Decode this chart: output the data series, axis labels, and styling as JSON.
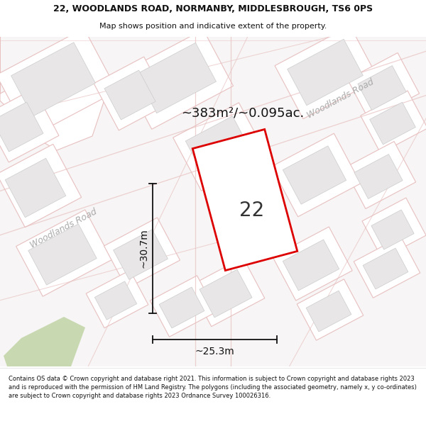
{
  "title_line1": "22, WOODLANDS ROAD, NORMANBY, MIDDLESBROUGH, TS6 0PS",
  "title_line2": "Map shows position and indicative extent of the property.",
  "area_label": "~383m²/~0.095ac.",
  "property_number": "22",
  "dim_width": "~25.3m",
  "dim_height": "~30.7m",
  "road_label_left": "Woodlands Road",
  "road_label_right": "Woodlands Road",
  "footer_text": "Contains OS data © Crown copyright and database right 2021. This information is subject to Crown copyright and database rights 2023 and is reproduced with the permission of HM Land Registry. The polygons (including the associated geometry, namely x, y co-ordinates) are subject to Crown copyright and database rights 2023 Ordnance Survey 100026316.",
  "map_bg": "#f7f5f5",
  "parcel_fill": "#ffffff",
  "parcel_edge": "#e8c0c0",
  "building_fill": "#e8e6e6",
  "building_stroke": "#cccccc",
  "plot_fill": "#ffffff",
  "plot_stroke": "#dd0000",
  "green_fill": "#c8d8b0",
  "measure_color": "#111111",
  "title_color": "#111111",
  "footer_color": "#111111",
  "road_label_color": "#aaaaaa",
  "area_label_color": "#111111"
}
